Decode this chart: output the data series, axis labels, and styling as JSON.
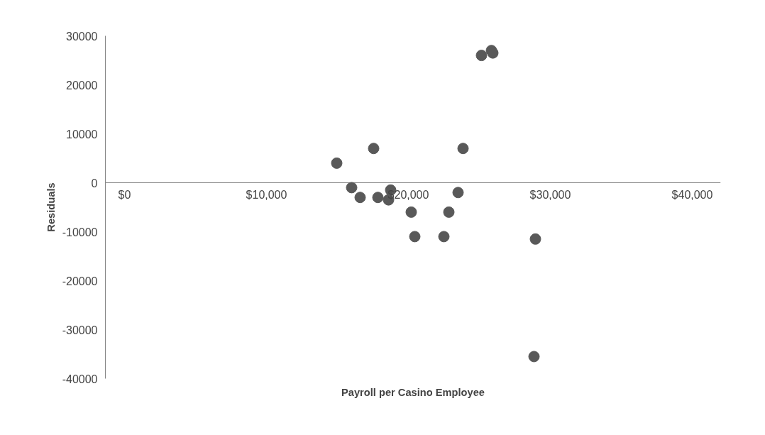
{
  "chart_data": {
    "type": "scatter",
    "xlabel": "Payroll per Casino Employee",
    "ylabel": "Residuals",
    "x": [
      14950,
      16000,
      16600,
      17550,
      17850,
      18600,
      18750,
      20200,
      20450,
      22500,
      22850,
      23500,
      23850,
      25150,
      25850,
      25950,
      28950,
      28850
    ],
    "series": [
      {
        "color": "#595959",
        "values": [
          4000,
          -1000,
          -3000,
          7000,
          -3000,
          -3500,
          -1500,
          -6000,
          -11000,
          -11000,
          -6000,
          -2000,
          7000,
          26000,
          27000,
          26500,
          -11500,
          -35500
        ]
      }
    ],
    "xlim": [
      -1350,
      42000
    ],
    "ylim": [
      -40000,
      30000
    ],
    "xticks": [
      {
        "value": 0,
        "label": "$0"
      },
      {
        "value": 10000,
        "label": "$10,000"
      },
      {
        "value": 20000,
        "label": "$20,000"
      },
      {
        "value": 30000,
        "label": "$30,000"
      },
      {
        "value": 40000,
        "label": "$40,000"
      }
    ],
    "yticks": [
      -40000,
      -30000,
      -20000,
      -10000,
      0,
      10000,
      20000,
      30000
    ],
    "grid": false,
    "marker": "circle"
  }
}
